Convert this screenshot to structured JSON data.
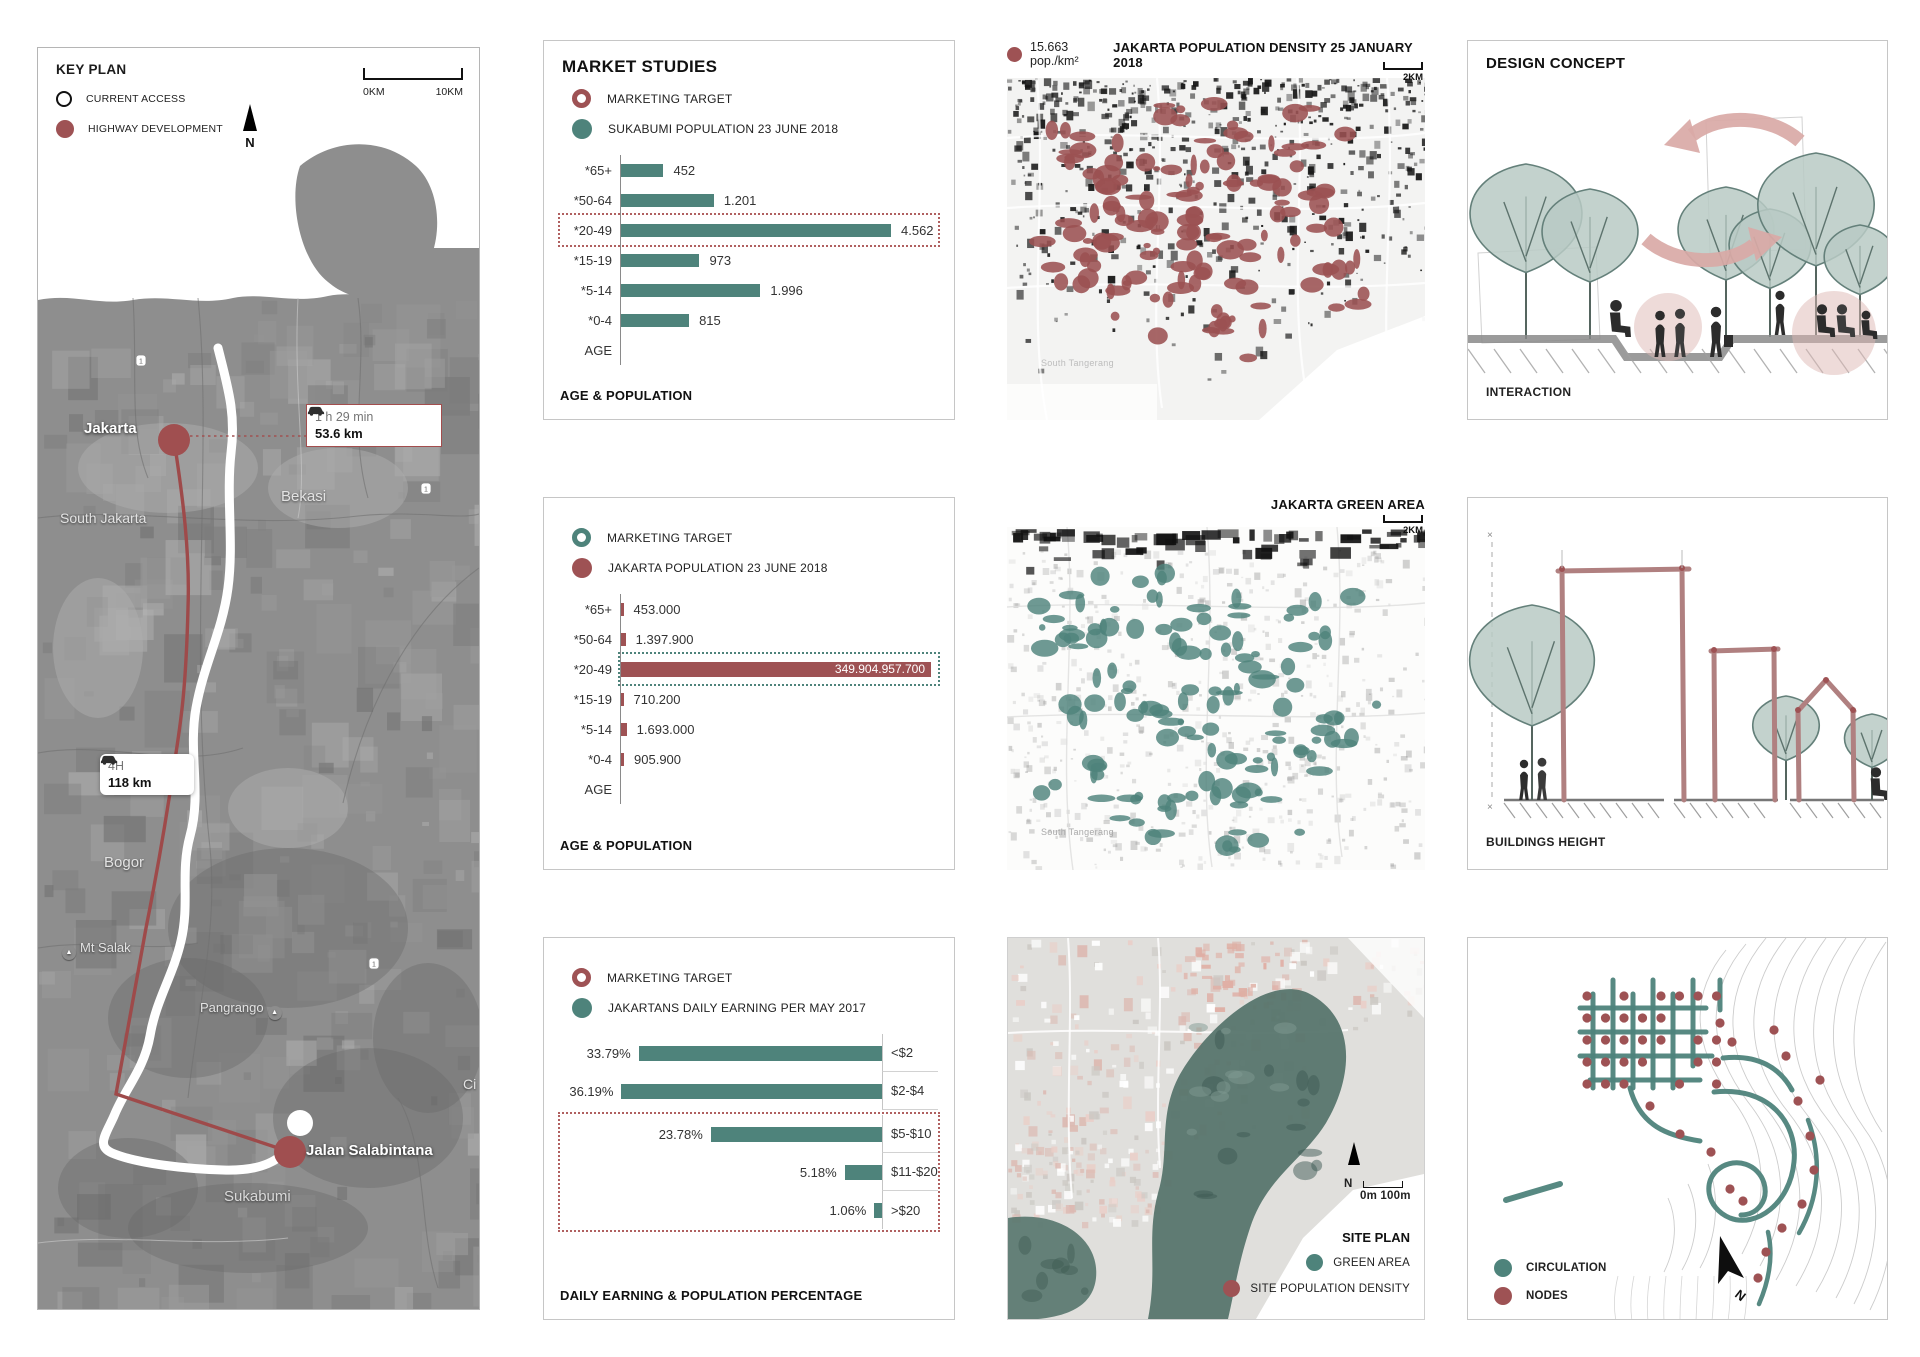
{
  "colors": {
    "teal": "#4e837b",
    "maroon": "#9e5254",
    "arrow_pink": "#d9a9a6",
    "tree": "#b9cac4",
    "tree_line": "#64807a",
    "highlight_red": "#b06060",
    "contour": "#cccccc"
  },
  "key_plan": {
    "title": "KEY PLAN",
    "legend": [
      {
        "type": "ring",
        "label": "CURRENT ACCESS"
      },
      {
        "type": "dot",
        "label": "HIGHWAY DEVELOPMENT"
      }
    ],
    "north": "N",
    "scale_start": "0KM",
    "scale_end": "10KM",
    "route_box_1": {
      "time": "1 h 29 min",
      "distance": "53.6 km"
    },
    "route_box_2": {
      "time": "4H",
      "distance": "118 km"
    },
    "places": {
      "jakarta": "Jakarta",
      "south_jakarta": "South Jakarta",
      "bekasi": "Bekasi",
      "bogor": "Bogor",
      "mt_salak": "Mt Salak",
      "pangrango": "Pangrango",
      "ci": "Ci",
      "jalan_salabintana": "Jalan Salabintana",
      "sukabumi": "Sukabumi"
    }
  },
  "market_studies": {
    "title": "MARKET STUDIES",
    "charts": [
      {
        "kind": "age",
        "legend": [
          {
            "type": "ring",
            "color": "maroon",
            "label": "MARKETING TARGET"
          },
          {
            "type": "dot",
            "color": "teal",
            "label": "SUKABUMI POPULATION 23 JUNE 2018"
          }
        ],
        "bar_color": "teal",
        "highlight": {
          "row": 2,
          "color": "highlight_red"
        },
        "highlight_scope": "row",
        "axis_label": "AGE",
        "caption": "AGE & POPULATION",
        "rows": [
          {
            "label": "*65+",
            "value": 452,
            "display": "452"
          },
          {
            "label": "*50-64",
            "value": 1201,
            "display": "1.201"
          },
          {
            "label": "*20-49",
            "value": 4562,
            "display": "4.562"
          },
          {
            "label": "*15-19",
            "value": 973,
            "display": "973"
          },
          {
            "label": "*5-14",
            "value": 1996,
            "display": "1.996"
          },
          {
            "label": "*0-4",
            "value": 815,
            "display": "815"
          }
        ]
      },
      {
        "kind": "age",
        "legend": [
          {
            "type": "ring",
            "color": "teal",
            "label": "MARKETING TARGET"
          },
          {
            "type": "dot",
            "color": "maroon",
            "label": "JAKARTA POPULATION 23 JUNE 2018"
          }
        ],
        "bar_color": "maroon",
        "highlight": {
          "row": 2,
          "color": "teal"
        },
        "highlight_scope": "zone",
        "value_in_bar_row": 2,
        "axis_label": "AGE",
        "caption": "AGE & POPULATION",
        "rows": [
          {
            "label": "*65+",
            "value": 453000,
            "display": "453.000"
          },
          {
            "label": "*50-64",
            "value": 1397900,
            "display": "1.397.900"
          },
          {
            "label": "*20-49",
            "value": 349904957700,
            "display": "349.904.957.700"
          },
          {
            "label": "*15-19",
            "value": 710200,
            "display": "710.200"
          },
          {
            "label": "*5-14",
            "value": 1693000,
            "display": "1.693.000"
          },
          {
            "label": "*0-4",
            "value": 905900,
            "display": "905.900"
          }
        ]
      },
      {
        "kind": "earning",
        "legend": [
          {
            "type": "ring",
            "color": "maroon",
            "label": "MARKETING TARGET"
          },
          {
            "type": "dot",
            "color": "teal",
            "label": "JAKARTANS DAILY EARNING PER MAY 2017"
          }
        ],
        "bar_color": "teal",
        "highlight_rows": [
          2,
          4
        ],
        "caption": "DAILY EARNING & POPULATION PERCENTAGE",
        "rows": [
          {
            "pct": 33.79,
            "display": "33.79%",
            "category": "<$2"
          },
          {
            "pct": 36.19,
            "display": "36.19%",
            "category": "$2-$4"
          },
          {
            "pct": 23.78,
            "display": "23.78%",
            "category": "$5-$10"
          },
          {
            "pct": 5.18,
            "display": "5.18%",
            "category": "$11-$20"
          },
          {
            "pct": 1.06,
            "display": "1.06%",
            "category": ">$20"
          }
        ]
      }
    ]
  },
  "chart_data": [
    {
      "type": "bar",
      "orientation": "horizontal",
      "title": "SUKABUMI POPULATION 23 JUNE 2018",
      "categories": [
        "*65+",
        "*50-64",
        "*20-49",
        "*15-19",
        "*5-14",
        "*0-4"
      ],
      "values": [
        452,
        1201,
        4562,
        973,
        1996,
        815
      ],
      "ylabel": "AGE",
      "caption": "AGE & POPULATION",
      "highlighted_category": "*20-49"
    },
    {
      "type": "bar",
      "orientation": "horizontal",
      "title": "JAKARTA POPULATION 23 JUNE 2018",
      "categories": [
        "*65+",
        "*50-64",
        "*20-49",
        "*15-19",
        "*5-14",
        "*0-4"
      ],
      "values": [
        453000,
        1397900,
        349904957700,
        710200,
        1693000,
        905900
      ],
      "ylabel": "AGE",
      "caption": "AGE & POPULATION",
      "highlighted_category": "*20-49"
    },
    {
      "type": "bar",
      "orientation": "horizontal",
      "title": "JAKARTANS DAILY EARNING PER MAY 2017",
      "categories": [
        "<$2",
        "$2-$4",
        "$5-$10",
        "$11-$20",
        ">$20"
      ],
      "values": [
        33.79,
        36.19,
        23.78,
        5.18,
        1.06
      ],
      "unit": "%",
      "caption": "DAILY EARNING & POPULATION PERCENTAGE",
      "highlighted_categories": [
        "$5-$10",
        "$11-$20",
        ">$20"
      ]
    }
  ],
  "density_map": {
    "legend_value": "15.663 pop./km²",
    "title": "JAKARTA POPULATION DENSITY 25 JANUARY 2018",
    "scale": "2KM",
    "area_label": "South Tangerang"
  },
  "green_map": {
    "title": "JAKARTA GREEN AREA",
    "scale": "2KM",
    "area_label": "South Tangerang"
  },
  "site_plan": {
    "title": "SITE PLAN",
    "north": "N",
    "scale": "0m 100m",
    "legend": [
      {
        "color": "teal",
        "label": "GREEN AREA"
      },
      {
        "color": "maroon",
        "label": "SITE POPULATION DENSITY"
      }
    ]
  },
  "design_concept": {
    "title": "DESIGN CONCEPT",
    "captions": {
      "interaction": "INTERACTION",
      "buildings_height": "BUILDINGS HEIGHT"
    },
    "circulation_legend": [
      {
        "color": "teal",
        "label": "CIRCULATION"
      },
      {
        "color": "maroon",
        "label": "NODES"
      }
    ],
    "north": "N"
  }
}
